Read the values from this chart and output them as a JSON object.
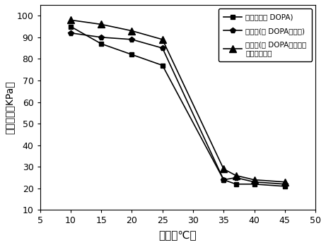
{
  "x": [
    10,
    15,
    20,
    25,
    35,
    37,
    40,
    45
  ],
  "series1": {
    "label": "聚合物（含 DOPA)",
    "y": [
      95,
      87,
      82,
      77,
      24,
      22,
      22,
      21
    ],
    "marker": "s",
    "color": "#000000"
  },
  "series2": {
    "label": "聚合物(含 DOPA、鑰基)",
    "y": [
      92,
      90,
      89,
      85,
      24,
      25,
      23,
      22
    ],
    "marker": "p",
    "color": "#000000"
  },
  "series3": {
    "label": "聚合物(含 DOPA、鑰基、\n疏基、双键）",
    "y": [
      98,
      96,
      93,
      89,
      29,
      26,
      24,
      23
    ],
    "marker": "^",
    "color": "#000000"
  },
  "xlabel": "温度（℃）",
  "ylabel": "粘结强度（KPa）",
  "xlim": [
    5,
    50
  ],
  "ylim": [
    10,
    105
  ],
  "xticks": [
    5,
    10,
    15,
    20,
    25,
    30,
    35,
    40,
    45,
    50
  ],
  "yticks": [
    10,
    20,
    30,
    40,
    50,
    60,
    70,
    80,
    90,
    100
  ],
  "background_color": "#ffffff"
}
